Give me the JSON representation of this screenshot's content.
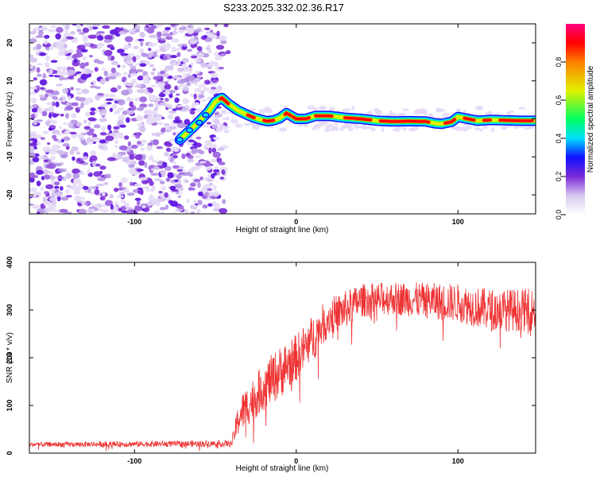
{
  "chart_data": [
    {
      "type": "heatmap",
      "title": "S233.2025.332.02.36.R17",
      "xlabel": "Height of straight line (km)",
      "ylabel": "Frequency (Hz)",
      "xlim": [
        -165,
        148
      ],
      "ylim": [
        -25,
        25
      ],
      "xticks": [
        -100,
        0,
        100
      ],
      "yticks": [
        -20,
        -10,
        0,
        10,
        20
      ],
      "noise_region_x": [
        -165,
        -48
      ],
      "ridge": {
        "x": [
          -72,
          -62,
          -54,
          -50,
          -46,
          -42,
          -36,
          -30,
          -26,
          -22,
          -18,
          -14,
          -10,
          -6,
          -4,
          0,
          6,
          12,
          20,
          30,
          40,
          50,
          60,
          70,
          80,
          86,
          90,
          96,
          100,
          106,
          112,
          120,
          130,
          140,
          148
        ],
        "y": [
          -5.5,
          -1.5,
          2.0,
          4.5,
          5.5,
          4.0,
          2.2,
          1.0,
          0.3,
          -0.2,
          -0.6,
          -0.4,
          0.2,
          1.5,
          1.0,
          0.0,
          0.0,
          0.8,
          0.8,
          0.3,
          0.0,
          -0.5,
          -0.7,
          -0.6,
          -0.7,
          -1.2,
          -1.3,
          -0.8,
          0.5,
          0.0,
          -0.5,
          -0.3,
          -0.4,
          -0.5,
          -0.5
        ]
      },
      "colorbar": {
        "label": "Normalized spectral amplitude",
        "range": [
          0.0,
          1.0
        ],
        "ticks": [
          0.0,
          0.2,
          0.4,
          0.6,
          0.8
        ],
        "tick_labels": [
          "0.0",
          "0.2",
          "0.4",
          "0.6",
          "0.8"
        ],
        "colors": [
          "#ffffff",
          "#d8c8f0",
          "#7a2bd8",
          "#1010ff",
          "#00e0ff",
          "#00ff60",
          "#e0f000",
          "#ff8000",
          "#ff0000",
          "#ff0080"
        ]
      }
    },
    {
      "type": "line",
      "xlabel": "Height of straight line (km)",
      "ylabel": "SNR (10 * v/v)",
      "xlim": [
        -165,
        148
      ],
      "ylim": [
        0,
        400
      ],
      "xticks": [
        -100,
        0,
        100
      ],
      "yticks": [
        0,
        100,
        200,
        300,
        400
      ],
      "color": "#ee3333",
      "envelope": {
        "x": [
          -165,
          -40,
          -35,
          -20,
          -10,
          0,
          10,
          20,
          30,
          40,
          60,
          80,
          100,
          120,
          148
        ],
        "mean": [
          18,
          20,
          80,
          140,
          170,
          200,
          240,
          285,
          300,
          320,
          325,
          320,
          315,
          300,
          300
        ],
        "spread": [
          5,
          7,
          40,
          50,
          55,
          50,
          50,
          40,
          40,
          35,
          35,
          38,
          40,
          45,
          45
        ]
      }
    }
  ]
}
